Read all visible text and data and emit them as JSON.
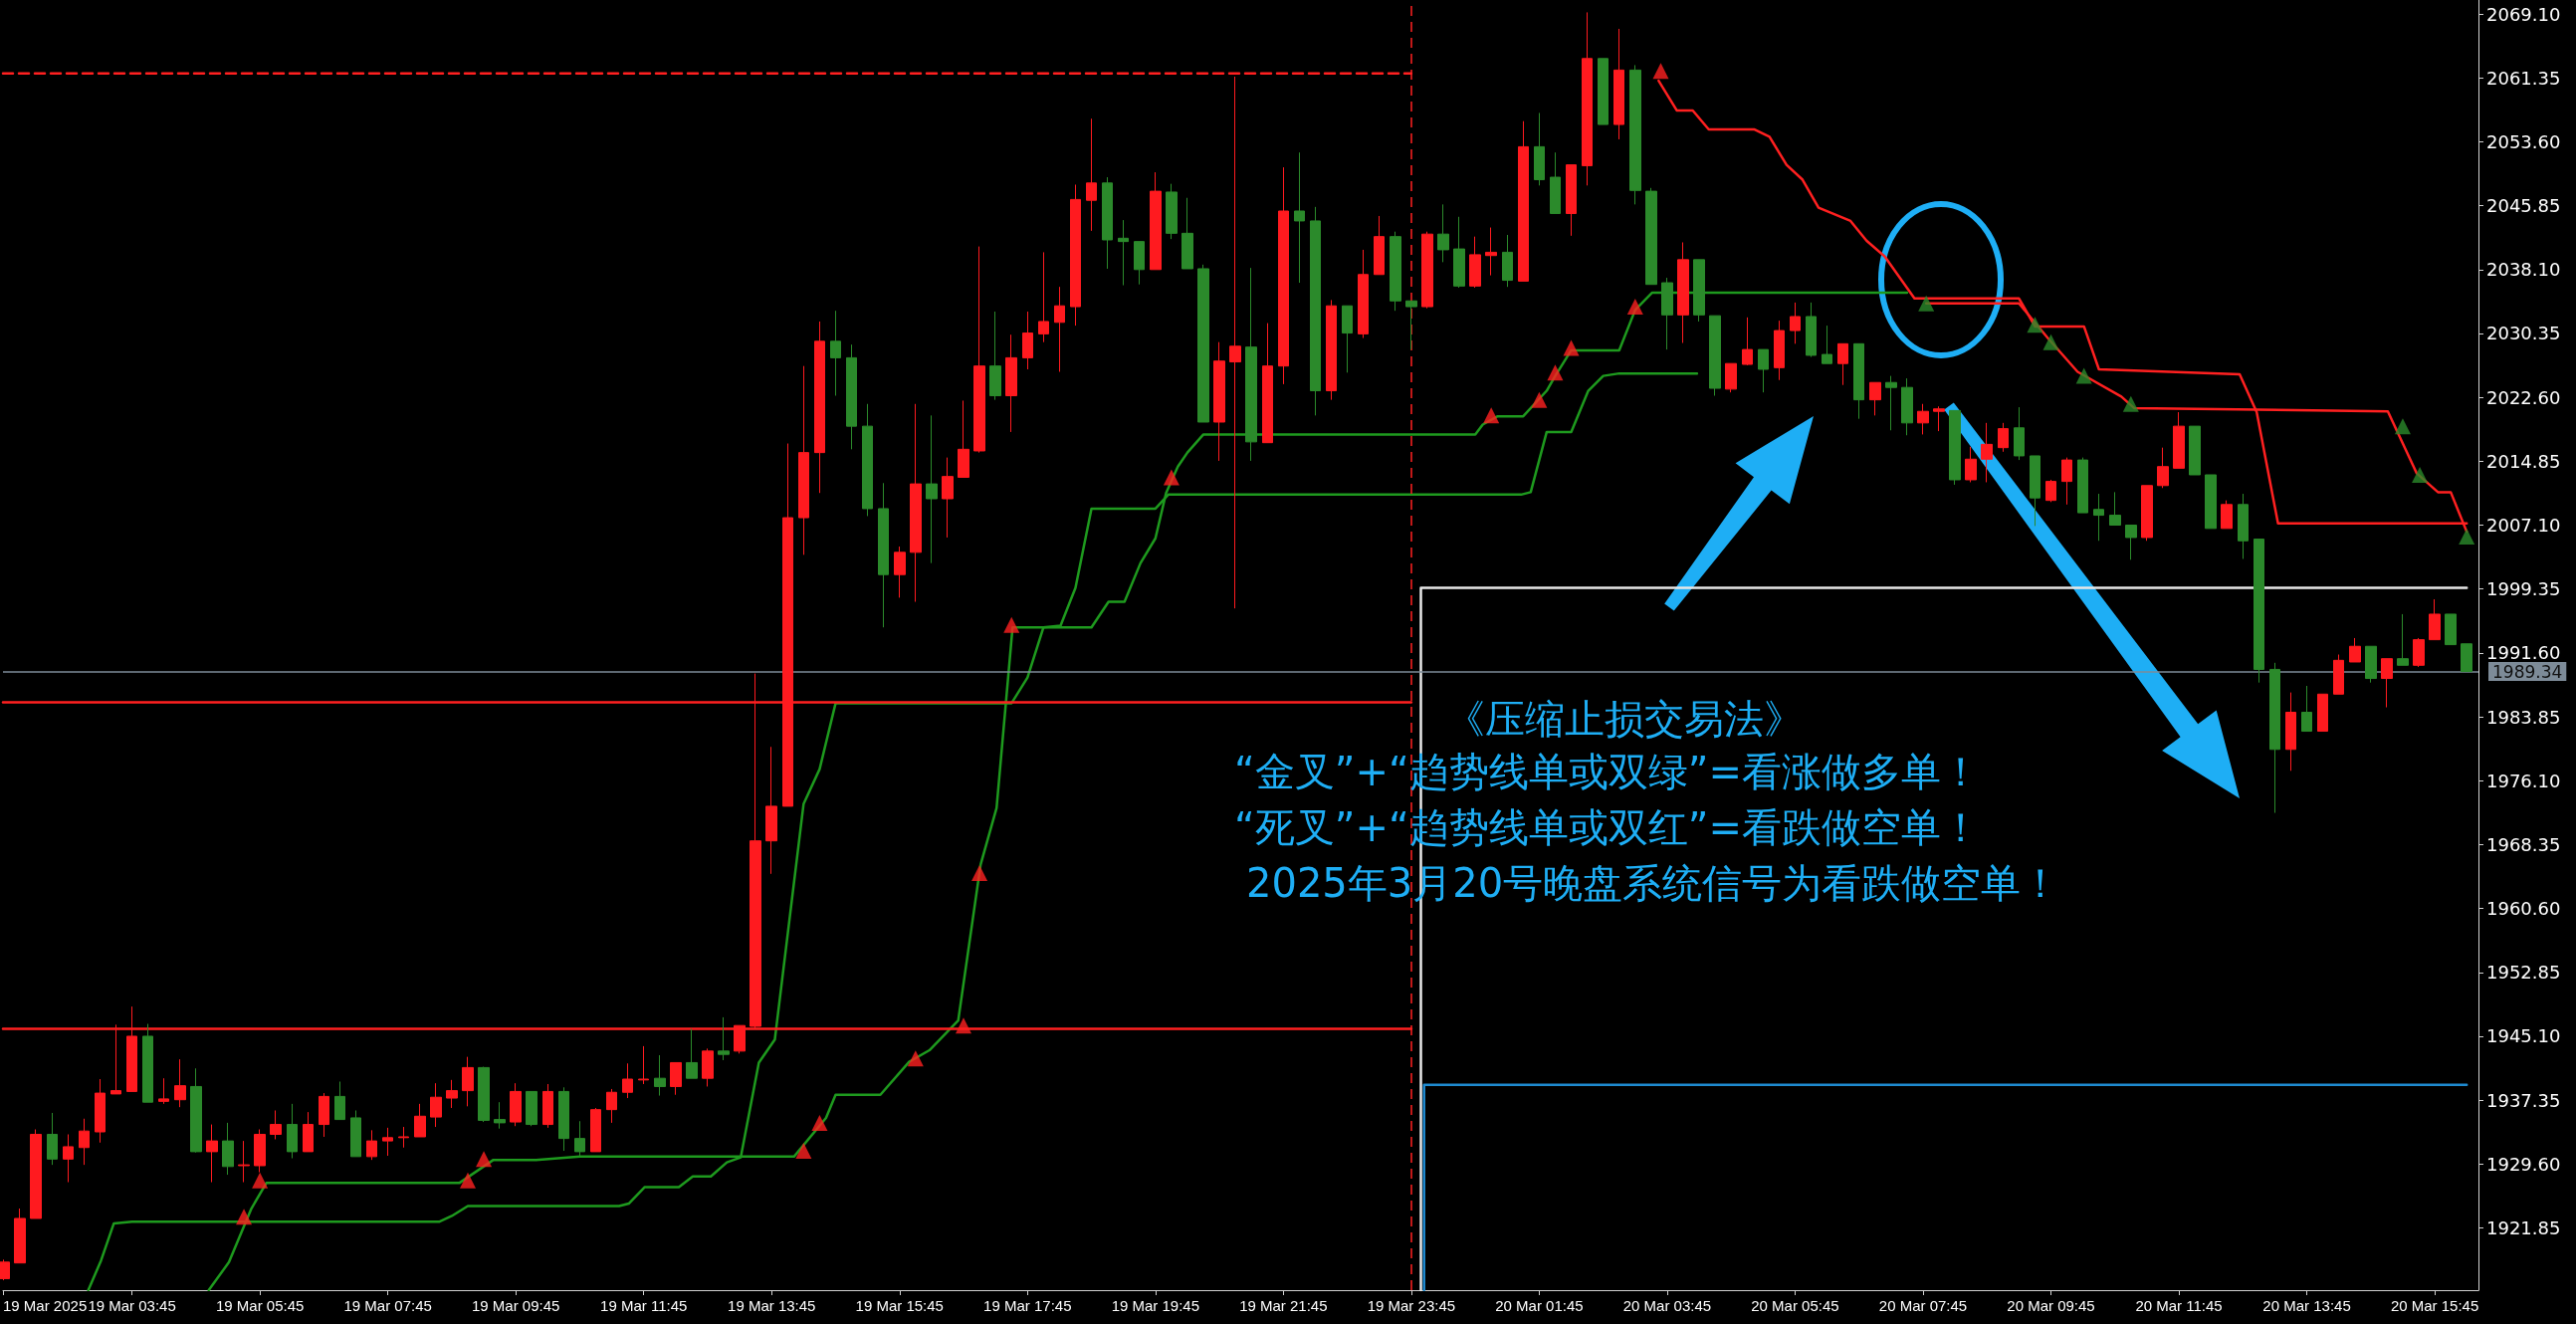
{
  "chart_data": {
    "type": "candlestick",
    "x": [
      "2025-03-19T01:45",
      "2025-03-19T02:00",
      "2025-03-19T02:15",
      "2025-03-19T02:30",
      "2025-03-19T02:45",
      "2025-03-19T03:00",
      "2025-03-19T03:15",
      "2025-03-19T03:30",
      "2025-03-19T03:45",
      "2025-03-19T04:00",
      "2025-03-19T04:15",
      "2025-03-19T04:30",
      "2025-03-19T04:45",
      "2025-03-19T05:00",
      "2025-03-19T05:15",
      "2025-03-19T05:30",
      "2025-03-19T05:45",
      "2025-03-19T06:00",
      "2025-03-19T06:15",
      "2025-03-19T06:30",
      "2025-03-19T06:45",
      "2025-03-19T07:00",
      "2025-03-19T07:15",
      "2025-03-19T07:30",
      "2025-03-19T07:45",
      "2025-03-19T08:00",
      "2025-03-19T08:15",
      "2025-03-19T08:30",
      "2025-03-19T08:45",
      "2025-03-19T09:00",
      "2025-03-19T09:15",
      "2025-03-19T09:30",
      "2025-03-19T09:45",
      "2025-03-19T10:00",
      "2025-03-19T10:15",
      "2025-03-19T10:30",
      "2025-03-19T10:45",
      "2025-03-19T11:00",
      "2025-03-19T11:15",
      "2025-03-19T11:30",
      "2025-03-19T11:45",
      "2025-03-19T12:00",
      "2025-03-19T12:15",
      "2025-03-19T12:30",
      "2025-03-19T12:45",
      "2025-03-19T13:00",
      "2025-03-19T13:15",
      "2025-03-19T13:30",
      "2025-03-19T13:45",
      "2025-03-19T14:00",
      "2025-03-19T14:15",
      "2025-03-19T14:30",
      "2025-03-19T14:45",
      "2025-03-19T15:00",
      "2025-03-19T15:15",
      "2025-03-19T15:30",
      "2025-03-19T15:45",
      "2025-03-19T16:00",
      "2025-03-19T16:15",
      "2025-03-19T16:30",
      "2025-03-19T16:45",
      "2025-03-19T17:00",
      "2025-03-19T17:15",
      "2025-03-19T17:30",
      "2025-03-19T17:45",
      "2025-03-19T18:00",
      "2025-03-19T18:15",
      "2025-03-19T18:30",
      "2025-03-19T18:45",
      "2025-03-19T19:00",
      "2025-03-19T19:15",
      "2025-03-19T19:30",
      "2025-03-19T19:45",
      "2025-03-19T20:00",
      "2025-03-19T20:15",
      "2025-03-19T20:30",
      "2025-03-19T20:45",
      "2025-03-19T21:00",
      "2025-03-19T21:15",
      "2025-03-19T21:30",
      "2025-03-19T21:45",
      "2025-03-19T22:00",
      "2025-03-19T22:15",
      "2025-03-19T22:30",
      "2025-03-19T22:45",
      "2025-03-19T23:00",
      "2025-03-19T23:15",
      "2025-03-19T23:30",
      "2025-03-19T23:45",
      "2025-03-20T00:00",
      "2025-03-20T00:15",
      "2025-03-20T00:30",
      "2025-03-20T00:45",
      "2025-03-20T01:00",
      "2025-03-20T01:15",
      "2025-03-20T01:30",
      "2025-03-20T01:45",
      "2025-03-20T02:00",
      "2025-03-20T02:15",
      "2025-03-20T02:30",
      "2025-03-20T02:45",
      "2025-03-20T03:00",
      "2025-03-20T03:15",
      "2025-03-20T03:30",
      "2025-03-20T03:45",
      "2025-03-20T04:00",
      "2025-03-20T04:15",
      "2025-03-20T04:30",
      "2025-03-20T04:45",
      "2025-03-20T05:00",
      "2025-03-20T05:15",
      "2025-03-20T05:30",
      "2025-03-20T05:45",
      "2025-03-20T06:00",
      "2025-03-20T06:15",
      "2025-03-20T06:30",
      "2025-03-20T06:45",
      "2025-03-20T07:00",
      "2025-03-20T07:15",
      "2025-03-20T07:30",
      "2025-03-20T07:45",
      "2025-03-20T08:00",
      "2025-03-20T08:15",
      "2025-03-20T08:30",
      "2025-03-20T08:45",
      "2025-03-20T09:00",
      "2025-03-20T09:15",
      "2025-03-20T09:30",
      "2025-03-20T09:45",
      "2025-03-20T10:00",
      "2025-03-20T10:15",
      "2025-03-20T10:30",
      "2025-03-20T10:45",
      "2025-03-20T11:00",
      "2025-03-20T11:15",
      "2025-03-20T11:30",
      "2025-03-20T11:45",
      "2025-03-20T12:00",
      "2025-03-20T12:15",
      "2025-03-20T12:30",
      "2025-03-20T12:45",
      "2025-03-20T13:00",
      "2025-03-20T13:15",
      "2025-03-20T13:30",
      "2025-03-20T13:45",
      "2025-03-20T14:00",
      "2025-03-20T14:15",
      "2025-03-20T14:30",
      "2025-03-20T14:45",
      "2025-03-20T15:00",
      "2025-03-20T15:15",
      "2025-03-20T15:30",
      "2025-03-20T15:45",
      "2025-03-20T16:00",
      "2025-03-20T16:15"
    ],
    "ohlc": [
      [
        1915.7,
        1918.0,
        1915.5,
        1917.7
      ],
      [
        1917.6,
        1924.2,
        1917.6,
        1923.0
      ],
      [
        1923.0,
        1933.8,
        1923.0,
        1933.2
      ],
      [
        1933.2,
        1935.8,
        1929.5,
        1930.2
      ],
      [
        1930.2,
        1933.2,
        1927.4,
        1931.7
      ],
      [
        1931.6,
        1935.1,
        1929.5,
        1933.6
      ],
      [
        1933.5,
        1939.9,
        1932.2,
        1938.2
      ],
      [
        1938.1,
        1946.5,
        1938.1,
        1938.5
      ],
      [
        1938.4,
        1948.7,
        1938.4,
        1945.1
      ],
      [
        1945.1,
        1946.6,
        1937.1,
        1937.1
      ],
      [
        1937.2,
        1940.0,
        1936.9,
        1937.5
      ],
      [
        1937.4,
        1942.3,
        1936.5,
        1939.1
      ],
      [
        1939.0,
        1941.2,
        1931.0,
        1931.1
      ],
      [
        1931.1,
        1934.4,
        1927.4,
        1932.4
      ],
      [
        1932.4,
        1934.6,
        1928.3,
        1929.3
      ],
      [
        1929.4,
        1932.4,
        1927.4,
        1929.5
      ],
      [
        1929.4,
        1933.8,
        1928.6,
        1933.2
      ],
      [
        1933.2,
        1936.1,
        1932.6,
        1934.4
      ],
      [
        1934.4,
        1936.9,
        1930.3,
        1931.1
      ],
      [
        1931.1,
        1935.9,
        1931.1,
        1934.4
      ],
      [
        1934.4,
        1938.2,
        1932.9,
        1937.8
      ],
      [
        1937.8,
        1939.6,
        1935.0,
        1935.0
      ],
      [
        1935.2,
        1936.1,
        1930.5,
        1930.5
      ],
      [
        1930.5,
        1933.7,
        1930.1,
        1932.4
      ],
      [
        1932.4,
        1934.0,
        1930.6,
        1932.8
      ],
      [
        1932.8,
        1934.1,
        1931.6,
        1932.9
      ],
      [
        1932.9,
        1936.9,
        1932.9,
        1935.4
      ],
      [
        1935.3,
        1939.4,
        1934.1,
        1937.7
      ],
      [
        1937.6,
        1939.8,
        1936.4,
        1938.5
      ],
      [
        1938.5,
        1942.6,
        1936.6,
        1941.3
      ],
      [
        1941.3,
        1941.4,
        1934.7,
        1934.9
      ],
      [
        1935.0,
        1937.1,
        1933.9,
        1934.6
      ],
      [
        1934.7,
        1939.4,
        1934.2,
        1938.4
      ],
      [
        1938.4,
        1938.4,
        1934.2,
        1934.4
      ],
      [
        1934.4,
        1939.3,
        1934.0,
        1938.4
      ],
      [
        1938.4,
        1938.9,
        1931.2,
        1932.7
      ],
      [
        1932.7,
        1934.8,
        1930.6,
        1931.1
      ],
      [
        1931.1,
        1936.4,
        1931.1,
        1936.2
      ],
      [
        1936.2,
        1938.7,
        1934.6,
        1938.3
      ],
      [
        1938.3,
        1941.8,
        1937.6,
        1939.9
      ],
      [
        1939.8,
        1943.9,
        1939.3,
        1939.9
      ],
      [
        1940.0,
        1942.8,
        1937.9,
        1939.0
      ],
      [
        1939.0,
        1941.9,
        1938.0,
        1941.9
      ],
      [
        1941.9,
        1946.0,
        1940.0,
        1940.0
      ],
      [
        1940.0,
        1943.6,
        1939.0,
        1943.3
      ],
      [
        1943.3,
        1947.4,
        1942.2,
        1942.9
      ],
      [
        1943.3,
        1946.4,
        1943.0,
        1946.4
      ],
      [
        1946.3,
        1989.1,
        1946.0,
        1968.8
      ],
      [
        1968.8,
        1980.2,
        1964.8,
        1973.0
      ],
      [
        1973.0,
        2017.0,
        1973.0,
        2008.0
      ],
      [
        2008.0,
        2026.4,
        2003.5,
        2015.9
      ],
      [
        2015.9,
        2031.8,
        2011.0,
        2029.4
      ],
      [
        2029.4,
        2033.1,
        2022.8,
        2027.4
      ],
      [
        2027.4,
        2029.0,
        2016.3,
        2019.1
      ],
      [
        2019.1,
        2021.8,
        2008.2,
        2009.1
      ],
      [
        2009.1,
        2012.2,
        1994.7,
        2001.1
      ],
      [
        2001.1,
        2004.5,
        1998.3,
        2003.8
      ],
      [
        2003.8,
        2021.8,
        1997.8,
        2012.1
      ],
      [
        2012.1,
        2020.4,
        2002.5,
        2010.3
      ],
      [
        2010.3,
        2015.3,
        2005.6,
        2013.0
      ],
      [
        2012.9,
        2022.2,
        2012.9,
        2016.3
      ],
      [
        2016.1,
        2040.9,
        2015.9,
        2026.4
      ],
      [
        2026.4,
        2033.0,
        2022.3,
        2022.8
      ],
      [
        2022.8,
        2030.2,
        2018.4,
        2027.4
      ],
      [
        2027.4,
        2033.0,
        2026.0,
        2030.4
      ],
      [
        2030.3,
        2040.2,
        2029.3,
        2031.8
      ],
      [
        2031.7,
        2036.0,
        2025.7,
        2033.7
      ],
      [
        2033.6,
        2048.4,
        2031.3,
        2046.6
      ],
      [
        2046.5,
        2056.4,
        2042.8,
        2048.6
      ],
      [
        2048.6,
        2049.3,
        2038.2,
        2041.7
      ],
      [
        2041.9,
        2044.1,
        2036.2,
        2041.5
      ],
      [
        2041.5,
        2041.5,
        2036.3,
        2038.1
      ],
      [
        2038.1,
        2049.9,
        2038.1,
        2047.6
      ],
      [
        2047.5,
        2048.5,
        2041.8,
        2042.5
      ],
      [
        2042.5,
        2046.8,
        2038.2,
        2038.2
      ],
      [
        2038.2,
        2038.7,
        2019.6,
        2019.6
      ],
      [
        2019.6,
        2029.3,
        2014.9,
        2027.0
      ],
      [
        2026.9,
        2061.5,
        1997.0,
        2028.8
      ],
      [
        2028.7,
        2038.3,
        2014.9,
        2017.2
      ],
      [
        2017.1,
        2031.6,
        2017.1,
        2026.4
      ],
      [
        2026.4,
        2050.5,
        2024.2,
        2045.2
      ],
      [
        2045.2,
        2052.3,
        2036.5,
        2044.0
      ],
      [
        2044.0,
        2045.7,
        2020.4,
        2023.4
      ],
      [
        2023.4,
        2034.4,
        2022.3,
        2033.7
      ],
      [
        2033.7,
        2033.7,
        2025.6,
        2030.4
      ],
      [
        2030.3,
        2040.5,
        2029.8,
        2037.5
      ],
      [
        2037.5,
        2044.6,
        2037.5,
        2042.1
      ],
      [
        2042.1,
        2042.7,
        2033.1,
        2034.3
      ],
      [
        2034.3,
        2034.3,
        2028.4,
        2033.6
      ],
      [
        2033.6,
        2042.7,
        2033.4,
        2042.4
      ],
      [
        2042.4,
        2046.0,
        2039.0,
        2040.5
      ],
      [
        2040.6,
        2044.5,
        2035.9,
        2036.1
      ],
      [
        2036.1,
        2042.1,
        2035.9,
        2039.9
      ],
      [
        2039.8,
        2043.2,
        2037.4,
        2040.2
      ],
      [
        2040.2,
        2042.3,
        2036.0,
        2036.8
      ],
      [
        2036.7,
        2056.1,
        2036.7,
        2053.0
      ],
      [
        2053.0,
        2057.1,
        2048.3,
        2049.0
      ],
      [
        2049.3,
        2052.3,
        2044.9,
        2044.9
      ],
      [
        2044.9,
        2050.8,
        2042.2,
        2050.8
      ],
      [
        2050.7,
        2069.3,
        2048.3,
        2063.7
      ],
      [
        2063.7,
        2063.7,
        2055.7,
        2055.7
      ],
      [
        2055.7,
        2067.3,
        2053.9,
        2062.3
      ],
      [
        2062.3,
        2062.9,
        2046.0,
        2047.7
      ],
      [
        2047.6,
        2048.0,
        2036.3,
        2036.3
      ],
      [
        2036.5,
        2037.1,
        2028.4,
        2032.6
      ],
      [
        2032.6,
        2041.4,
        2029.2,
        2039.3
      ],
      [
        2039.3,
        2039.3,
        2031.8,
        2032.6
      ],
      [
        2032.5,
        2032.5,
        2022.8,
        2023.7
      ],
      [
        2023.6,
        2026.7,
        2023.2,
        2026.7
      ],
      [
        2026.6,
        2032.3,
        2026.5,
        2028.4
      ],
      [
        2028.4,
        2028.4,
        2023.2,
        2026.0
      ],
      [
        2026.2,
        2031.9,
        2024.7,
        2030.7
      ],
      [
        2030.7,
        2034.1,
        2029.1,
        2032.4
      ],
      [
        2032.4,
        2034.1,
        2027.5,
        2027.7
      ],
      [
        2027.8,
        2031.3,
        2026.7,
        2026.7
      ],
      [
        2026.7,
        2029.1,
        2024.1,
        2029.1
      ],
      [
        2029.1,
        2029.1,
        2020.0,
        2022.3
      ],
      [
        2022.3,
        2024.4,
        2020.4,
        2024.4
      ],
      [
        2024.4,
        2025.2,
        2018.6,
        2023.8
      ],
      [
        2023.8,
        2024.9,
        2018.0,
        2019.5
      ],
      [
        2019.5,
        2021.8,
        2018.1,
        2020.9
      ],
      [
        2020.9,
        2021.5,
        2018.5,
        2021.2
      ],
      [
        2021.0,
        2021.0,
        2012.0,
        2012.6
      ],
      [
        2012.6,
        2016.6,
        2012.3,
        2015.1
      ],
      [
        2015.1,
        2019.5,
        2012.3,
        2016.9
      ],
      [
        2016.5,
        2019.5,
        2016.0,
        2018.8
      ],
      [
        2018.9,
        2021.4,
        2015.0,
        2015.5
      ],
      [
        2015.5,
        2015.5,
        2007.0,
        2010.4
      ],
      [
        2010.1,
        2012.6,
        2009.9,
        2012.4
      ],
      [
        2012.4,
        2015.3,
        2009.6,
        2015.0
      ],
      [
        2015.0,
        2015.3,
        2008.6,
        2008.6
      ],
      [
        2009.0,
        2010.9,
        2005.2,
        2008.3
      ],
      [
        2008.3,
        2011.1,
        2007.1,
        2007.1
      ],
      [
        2007.1,
        2007.1,
        2002.9,
        2005.6
      ],
      [
        2005.6,
        2011.9,
        2005.2,
        2011.9
      ],
      [
        2011.9,
        2016.5,
        2011.6,
        2014.2
      ],
      [
        2014.0,
        2020.8,
        2014.0,
        2019.1
      ],
      [
        2019.1,
        2019.1,
        2013.2,
        2013.2
      ],
      [
        2013.2,
        2013.2,
        2006.7,
        2006.7
      ],
      [
        2006.7,
        2010.1,
        2006.7,
        2009.6
      ],
      [
        2009.6,
        2010.9,
        2003.0,
        2005.2
      ],
      [
        2005.4,
        2005.4,
        1988.0,
        1989.6
      ],
      [
        1989.6,
        1990.4,
        1972.2,
        1979.9
      ],
      [
        1979.9,
        1986.8,
        1977.3,
        1984.4
      ],
      [
        1984.4,
        1987.6,
        1982.1,
        1982.1
      ],
      [
        1982.1,
        1986.6,
        1982.1,
        1986.6
      ],
      [
        1986.6,
        1991.4,
        1986.6,
        1990.7
      ],
      [
        1990.5,
        1993.4,
        1990.5,
        1992.4
      ],
      [
        1992.4,
        1992.4,
        1988.0,
        1988.5
      ],
      [
        1988.5,
        1990.9,
        1985.0,
        1990.9
      ],
      [
        1990.9,
        1996.3,
        1990.1,
        1990.1
      ],
      [
        1990.1,
        1993.4,
        1989.9,
        1993.2
      ],
      [
        1993.2,
        1998.1,
        1993.2,
        1996.3
      ],
      [
        1996.3,
        1996.3,
        1992.6,
        1992.6
      ],
      [
        1992.7,
        1992.7,
        1989.3,
        1989.34
      ]
    ],
    "colors": [
      "#ff1a1f",
      "#ff1a1f",
      "#ff1a1f",
      "#2b8a2b",
      "#ff1a1f",
      "#ff1a1f",
      "#ff1a1f",
      "#ff1a1f",
      "#ff1a1f",
      "#2b8a2b",
      "#ff1a1f",
      "#ff1a1f",
      "#2b8a2b",
      "#ff1a1f",
      "#2b8a2b",
      "#ff1a1f",
      "#ff1a1f",
      "#ff1a1f",
      "#2b8a2b",
      "#ff1a1f",
      "#ff1a1f",
      "#2b8a2b",
      "#2b8a2b",
      "#ff1a1f",
      "#ff1a1f",
      "#ff1a1f",
      "#ff1a1f",
      "#ff1a1f",
      "#ff1a1f",
      "#ff1a1f",
      "#2b8a2b",
      "#2b8a2b",
      "#ff1a1f",
      "#2b8a2b",
      "#ff1a1f",
      "#2b8a2b",
      "#2b8a2b",
      "#ff1a1f",
      "#ff1a1f",
      "#ff1a1f",
      "#ff1a1f",
      "#2b8a2b",
      "#ff1a1f",
      "#2b8a2b",
      "#ff1a1f",
      "#2b8a2b",
      "#ff1a1f",
      "#ff1a1f",
      "#ff1a1f",
      "#ff1a1f",
      "#ff1a1f",
      "#ff1a1f",
      "#2b8a2b",
      "#2b8a2b",
      "#2b8a2b",
      "#2b8a2b",
      "#ff1a1f",
      "#ff1a1f",
      "#2b8a2b",
      "#ff1a1f",
      "#ff1a1f",
      "#ff1a1f",
      "#2b8a2b",
      "#ff1a1f",
      "#ff1a1f",
      "#ff1a1f",
      "#ff1a1f",
      "#ff1a1f",
      "#ff1a1f",
      "#2b8a2b",
      "#2b8a2b",
      "#2b8a2b",
      "#ff1a1f",
      "#2b8a2b",
      "#2b8a2b",
      "#2b8a2b",
      "#ff1a1f",
      "#ff1a1f",
      "#2b8a2b",
      "#ff1a1f",
      "#ff1a1f",
      "#2b8a2b",
      "#2b8a2b",
      "#ff1a1f",
      "#2b8a2b",
      "#ff1a1f",
      "#ff1a1f",
      "#2b8a2b",
      "#2b8a2b",
      "#ff1a1f",
      "#2b8a2b",
      "#2b8a2b",
      "#ff1a1f",
      "#ff1a1f",
      "#2b8a2b",
      "#ff1a1f",
      "#2b8a2b",
      "#2b8a2b",
      "#ff1a1f",
      "#ff1a1f",
      "#2b8a2b",
      "#ff1a1f",
      "#2b8a2b",
      "#2b8a2b",
      "#2b8a2b",
      "#ff1a1f",
      "#2b8a2b",
      "#2b8a2b",
      "#ff1a1f",
      "#ff1a1f",
      "#2b8a2b",
      "#ff1a1f",
      "#ff1a1f",
      "#2b8a2b",
      "#2b8a2b",
      "#ff1a1f",
      "#2b8a2b",
      "#ff1a1f",
      "#2b8a2b",
      "#2b8a2b",
      "#ff1a1f",
      "#ff1a1f",
      "#2b8a2b",
      "#ff1a1f",
      "#ff1a1f",
      "#ff1a1f",
      "#2b8a2b",
      "#2b8a2b",
      "#ff1a1f",
      "#ff1a1f",
      "#2b8a2b",
      "#2b8a2b",
      "#2b8a2b",
      "#2b8a2b",
      "#ff1a1f",
      "#ff1a1f",
      "#ff1a1f",
      "#2b8a2b",
      "#2b8a2b",
      "#ff1a1f",
      "#2b8a2b",
      "#2b8a2b",
      "#2b8a2b",
      "#ff1a1f",
      "#2b8a2b",
      "#ff1a1f",
      "#ff1a1f",
      "#ff1a1f",
      "#2b8a2b",
      "#ff1a1f",
      "#2b8a2b",
      "#ff1a1f",
      "#ff1a1f",
      "#2b8a2b",
      "#2b8a2b"
    ],
    "xlim": [
      "2025-03-19T01:44",
      "2025-03-20T16:26"
    ],
    "xticks": [
      {
        "value": "2025-03-19T01:44",
        "label": "19 Mar 2025"
      },
      {
        "value": "2025-03-19T03:45",
        "label": "19 Mar 03:45"
      },
      {
        "value": "2025-03-19T05:45",
        "label": "19 Mar 05:45"
      },
      {
        "value": "2025-03-19T07:45",
        "label": "19 Mar 07:45"
      },
      {
        "value": "2025-03-19T09:45",
        "label": "19 Mar 09:45"
      },
      {
        "value": "2025-03-19T11:45",
        "label": "19 Mar 11:45"
      },
      {
        "value": "2025-03-19T13:45",
        "label": "19 Mar 13:45"
      },
      {
        "value": "2025-03-19T15:45",
        "label": "19 Mar 15:45"
      },
      {
        "value": "2025-03-19T17:45",
        "label": "19 Mar 17:45"
      },
      {
        "value": "2025-03-19T19:45",
        "label": "19 Mar 19:45"
      },
      {
        "value": "2025-03-19T21:45",
        "label": "19 Mar 21:45"
      },
      {
        "value": "2025-03-19T23:45",
        "label": "19 Mar 23:45"
      },
      {
        "value": "2025-03-20T01:45",
        "label": "20 Mar 01:45"
      },
      {
        "value": "2025-03-20T03:45",
        "label": "20 Mar 03:45"
      },
      {
        "value": "2025-03-20T05:45",
        "label": "20 Mar 05:45"
      },
      {
        "value": "2025-03-20T07:45",
        "label": "20 Mar 07:45"
      },
      {
        "value": "2025-03-20T09:45",
        "label": "20 Mar 09:45"
      },
      {
        "value": "2025-03-20T11:45",
        "label": "20 Mar 11:45"
      },
      {
        "value": "2025-03-20T13:45",
        "label": "20 Mar 13:45"
      },
      {
        "value": "2025-03-20T15:45",
        "label": "20 Mar 15:45"
      }
    ],
    "ylim": [
      1914.3,
      2070.8
    ],
    "yticks": [
      {
        "value": 2069.1,
        "label": "2069.10"
      },
      {
        "value": 2061.35,
        "label": "2061.35"
      },
      {
        "value": 2053.6,
        "label": "2053.60"
      },
      {
        "value": 2045.85,
        "label": "2045.85"
      },
      {
        "value": 2038.1,
        "label": "2038.10"
      },
      {
        "value": 2030.35,
        "label": "2030.35"
      },
      {
        "value": 2022.6,
        "label": "2022.60"
      },
      {
        "value": 2014.85,
        "label": "2014.85"
      },
      {
        "value": 2007.1,
        "label": "2007.10"
      },
      {
        "value": 1999.35,
        "label": "1999.35"
      },
      {
        "value": 1991.6,
        "label": "1991.60"
      },
      {
        "value": 1983.85,
        "label": "1983.85"
      },
      {
        "value": 1976.1,
        "label": "1976.10"
      },
      {
        "value": 1968.35,
        "label": "1968.35"
      },
      {
        "value": 1960.6,
        "label": "1960.60"
      },
      {
        "value": 1952.85,
        "label": "1952.85"
      },
      {
        "value": 1945.1,
        "label": "1945.10"
      },
      {
        "value": 1937.35,
        "label": "1937.35"
      },
      {
        "value": 1929.6,
        "label": "1929.60"
      },
      {
        "value": 1921.85,
        "label": "1921.85"
      }
    ],
    "ref_lines": [
      {
        "axis": "x",
        "value": "2025-03-19T23:45",
        "color": "#ff2020",
        "line_style": "dashed"
      },
      {
        "axis": "y",
        "value": 1989.34,
        "label": "1989.34",
        "color": "#7d8b98"
      }
    ],
    "annotations": [
      "《压缩止损交易法》",
      "“金叉”+“趋势线单或双绿”=看涨做多单！",
      "“死叉”+“趋势线单或双红”=看跌做空单！",
      "2025年3月20号晚盘系统信号为看跌做空单！"
    ],
    "series": [
      {
        "type": "line",
        "color": "#1e9a1e",
        "x": [
          "2025-03-19T04:57",
          "2025-03-19T05:16",
          "2025-03-19T05:37",
          "2025-03-19T05:51",
          "2025-03-19T08:52",
          "2025-03-19T09:24",
          "2025-03-19T10:04",
          "2025-03-19T10:45",
          "2025-03-19T14:06",
          "2025-03-19T14:36",
          "2025-03-19T14:45",
          "2025-03-19T15:27",
          "2025-03-19T15:54",
          "2025-03-19T16:13",
          "2025-03-19T16:40",
          "2025-03-19T17:01",
          "2025-03-19T17:16",
          "2025-03-19T17:31",
          "2025-03-19T18:45",
          "2025-03-19T19:01",
          "2025-03-19T19:16",
          "2025-03-19T19:31",
          "2025-03-19T19:45",
          "2025-03-19T19:55",
          "2025-03-19T20:06",
          "2025-03-19T20:15",
          "2025-03-19T20:30",
          "2025-03-20T00:45",
          "2025-03-20T00:52",
          "2025-03-20T01:06",
          "2025-03-20T01:30",
          "2025-03-20T01:52",
          "2025-03-20T02:00",
          "2025-03-20T02:15",
          "2025-03-20T03:00",
          "2025-03-20T03:15",
          "2025-03-20T03:31",
          "2025-03-20T07:30"
        ],
        "values": [
          1914.3,
          1917.7,
          1924.2,
          1927.3,
          1927.3,
          1930.1,
          1930.1,
          1930.5,
          1930.5,
          1935.2,
          1938.0,
          1938.0,
          1942.0,
          1943.4,
          1947.0,
          1965.9,
          1972.8,
          1994.7,
          1994.7,
          1997.8,
          1997.8,
          2002.5,
          2005.5,
          2011.0,
          2014.2,
          2015.9,
          2018.1,
          2018.1,
          2019.3,
          2020.3,
          2020.3,
          2023.4,
          2025.2,
          2028.3,
          2028.3,
          2033.2,
          2035.3,
          2035.3
        ]
      },
      {
        "type": "line",
        "color": "#1e9a1e",
        "x": [
          "2025-03-19T03:04",
          "2025-03-19T03:16",
          "2025-03-19T03:28",
          "2025-03-19T03:45",
          "2025-03-19T08:33",
          "2025-03-19T08:45",
          "2025-03-19T09:00",
          "2025-03-19T11:22",
          "2025-03-19T11:31",
          "2025-03-19T11:46",
          "2025-03-19T12:18",
          "2025-03-19T12:31",
          "2025-03-19T12:48",
          "2025-03-19T13:03",
          "2025-03-19T13:16",
          "2025-03-19T13:33",
          "2025-03-19T13:48",
          "2025-03-19T14:15",
          "2025-03-19T14:30",
          "2025-03-19T14:45",
          "2025-03-19T17:30",
          "2025-03-19T17:45",
          "2025-03-19T18:00",
          "2025-03-19T18:16",
          "2025-03-19T18:30",
          "2025-03-19T18:45",
          "2025-03-19T19:45",
          "2025-03-19T19:57",
          "2025-03-20T01:28",
          "2025-03-20T01:37",
          "2025-03-20T01:52",
          "2025-03-20T02:15",
          "2025-03-20T02:31",
          "2025-03-20T02:45",
          "2025-03-20T03:00",
          "2025-03-20T04:13"
        ],
        "values": [
          1914.3,
          1917.9,
          1922.4,
          1922.6,
          1922.6,
          1923.3,
          1924.5,
          1924.5,
          1924.8,
          1926.8,
          1926.8,
          1928.1,
          1928.1,
          1929.8,
          1930.4,
          1941.9,
          1944.7,
          1973.3,
          1977.5,
          1985.5,
          1985.5,
          1988.6,
          1994.7,
          1994.9,
          1999.5,
          2009.1,
          2009.1,
          2010.8,
          2010.8,
          2011.1,
          2018.4,
          2018.4,
          2023.4,
          2025.2,
          2025.5,
          2025.5
        ]
      },
      {
        "type": "line",
        "color": "#ff2020",
        "x": [
          "2025-03-20T03:37",
          "2025-03-20T03:54",
          "2025-03-20T04:09",
          "2025-03-20T04:24",
          "2025-03-20T05:07",
          "2025-03-20T05:21",
          "2025-03-20T05:37",
          "2025-03-20T05:52",
          "2025-03-20T06:07",
          "2025-03-20T06:37",
          "2025-03-20T06:52",
          "2025-03-20T07:09",
          "2025-03-20T07:37",
          "2025-03-20T09:15",
          "2025-03-20T09:30",
          "2025-03-20T10:16",
          "2025-03-20T10:30",
          "2025-03-20T12:42",
          "2025-03-20T12:58",
          "2025-03-20T13:18",
          "2025-03-20T16:15"
        ],
        "values": [
          2061.0,
          2057.4,
          2057.4,
          2055.1,
          2055.1,
          2054.2,
          2050.8,
          2049.0,
          2045.6,
          2044.0,
          2041.6,
          2039.7,
          2034.6,
          2034.6,
          2031.2,
          2031.2,
          2026.0,
          2025.4,
          2020.8,
          2007.3,
          2007.3
        ]
      },
      {
        "type": "line",
        "color": "#ff2020",
        "x": [
          "2025-03-20T07:48",
          "2025-03-20T09:15",
          "2025-03-20T09:42",
          "2025-03-20T10:10",
          "2025-03-20T10:51",
          "2025-03-20T11:03",
          "2025-03-20T15:01",
          "2025-03-20T15:28",
          "2025-03-20T15:48",
          "2025-03-20T16:00",
          "2025-03-20T16:15"
        ],
        "values": [
          2034.0,
          2034.0,
          2029.8,
          2025.7,
          2022.7,
          2021.3,
          2020.9,
          2013.4,
          2011.1,
          2011.1,
          2006.3
        ]
      },
      {
        "type": "line",
        "color": "#ff2020",
        "line_style": "dashed",
        "x": [
          "2025-03-19T01:44",
          "2025-03-19T23:45"
        ],
        "values": [
          2061.9,
          2061.9
        ]
      },
      {
        "type": "line",
        "color": "#ff2020",
        "x": [
          "2025-03-19T01:44",
          "2025-03-19T23:45"
        ],
        "values": [
          1985.6,
          1985.6
        ]
      },
      {
        "type": "line",
        "color": "#ff2020",
        "x": [
          "2025-03-19T01:44",
          "2025-03-19T23:45"
        ],
        "values": [
          1946.0,
          1946.0
        ]
      },
      {
        "type": "line",
        "color": "#e8e8e8",
        "x": [
          "2025-03-19T23:54",
          "2025-03-19T23:54",
          "2025-03-20T16:15"
        ],
        "values": [
          1914.3,
          1999.5,
          1999.5
        ]
      },
      {
        "type": "line",
        "color": "#1e8ad0",
        "x": [
          "2025-03-19T23:57",
          "2025-03-19T23:57",
          "2025-03-20T16:15"
        ],
        "values": [
          1914.3,
          1939.2,
          1939.2
        ]
      },
      {
        "type": "scatter",
        "color": "#ff2020",
        "marker": "triangle",
        "x": [
          "2025-03-19T05:30",
          "2025-03-19T05:45",
          "2025-03-19T09:00",
          "2025-03-19T09:15",
          "2025-03-19T14:15",
          "2025-03-19T14:30",
          "2025-03-19T16:00",
          "2025-03-19T16:45",
          "2025-03-19T17:00",
          "2025-03-19T17:30",
          "2025-03-19T20:00",
          "2025-03-20T01:00",
          "2025-03-20T01:45",
          "2025-03-20T02:00",
          "2025-03-20T02:15",
          "2025-03-20T03:15",
          "2025-03-20T03:39"
        ],
        "values": [
          1923.2,
          1927.6,
          1927.6,
          1930.2,
          1931.2,
          1934.6,
          1942.4,
          1946.4,
          1964.9,
          1995.0,
          2012.9,
          2020.4,
          2022.3,
          2025.6,
          2028.6,
          2033.6,
          2062.2
        ]
      },
      {
        "type": "scatter",
        "color": "#2b8a2b",
        "marker": "triangle",
        "x": [
          "2025-03-20T07:48",
          "2025-03-20T09:30",
          "2025-03-20T09:45",
          "2025-03-20T10:16",
          "2025-03-20T11:00",
          "2025-03-20T15:15",
          "2025-03-20T15:31",
          "2025-03-20T16:15"
        ],
        "values": [
          2034.0,
          2031.4,
          2029.3,
          2025.2,
          2021.8,
          2019.1,
          2013.2,
          2005.7
        ]
      }
    ]
  }
}
